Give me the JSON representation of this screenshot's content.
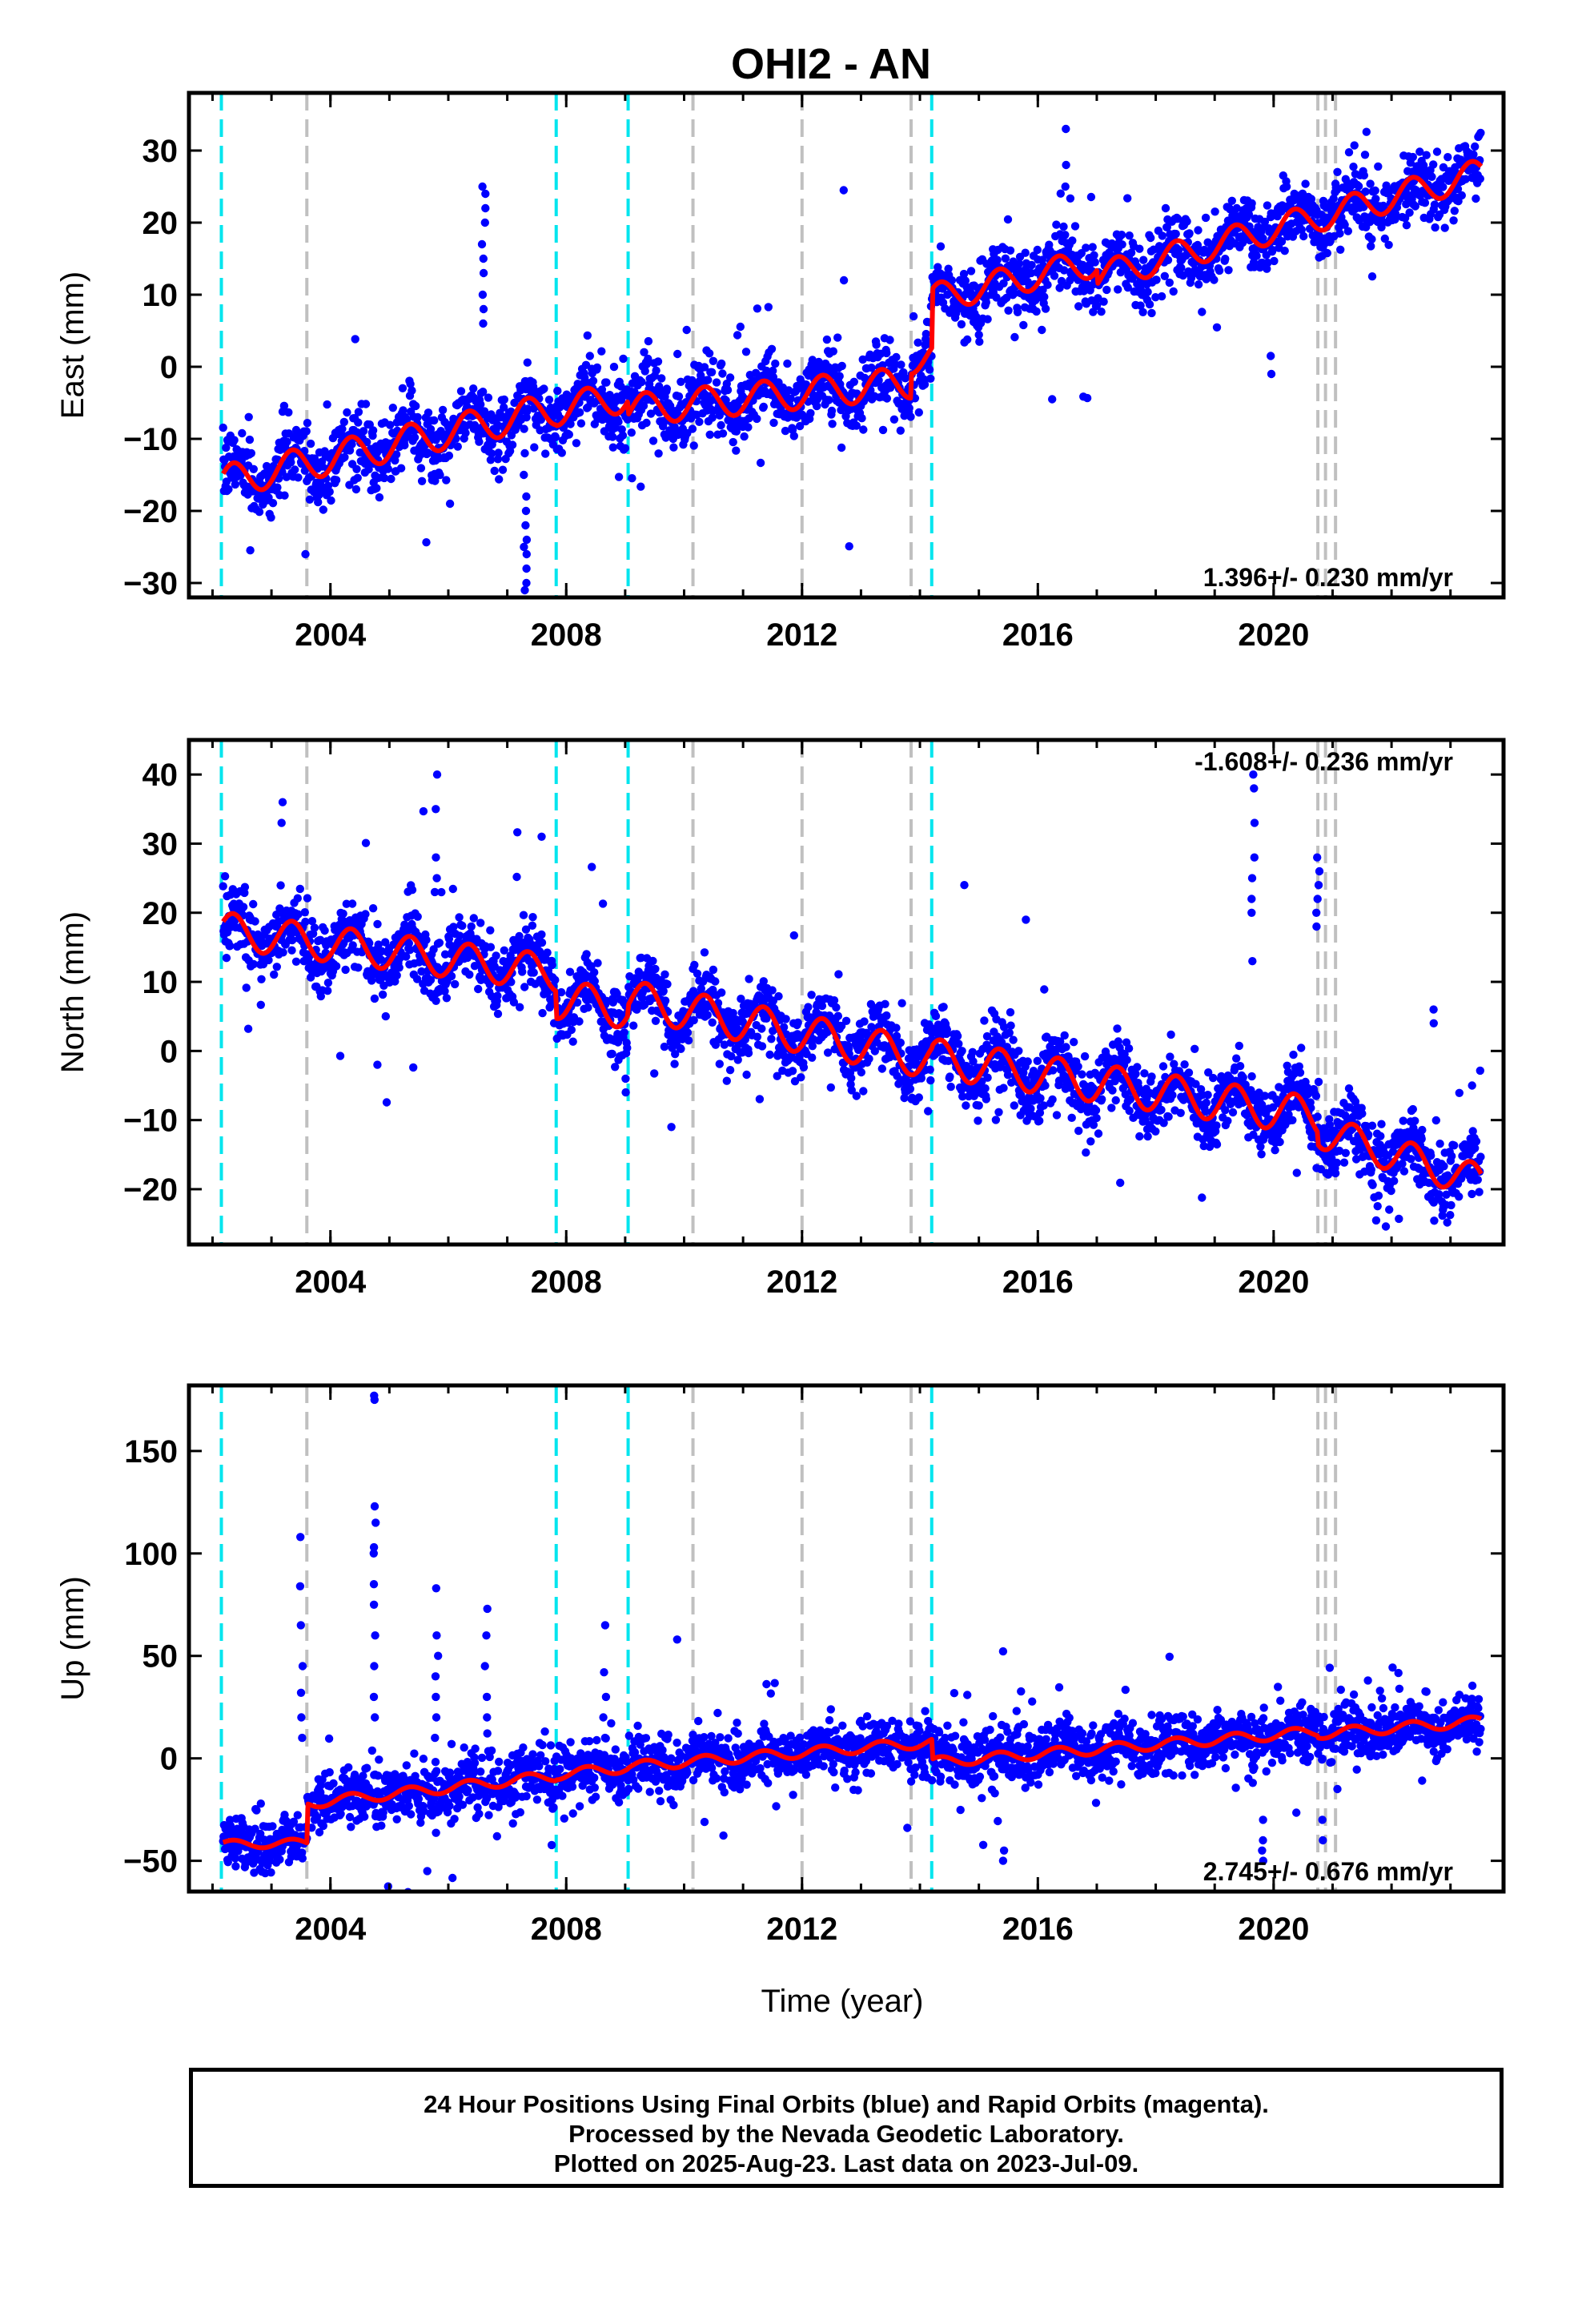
{
  "chart_data": {
    "type": "scatter",
    "title": "OHI2 - AN",
    "xlabel": "Time (year)",
    "x_ticks": [
      2004,
      2008,
      2012,
      2016,
      2020
    ],
    "xlim": [
      2001.6,
      2023.9
    ],
    "colors": {
      "points": "#0000ff",
      "model": "#ff0000",
      "equipment_change": "#00e5ee",
      "earthquake": "#c0c0c0",
      "frame": "#000000"
    },
    "vlines_cyan": [
      2002.15,
      2007.83,
      2009.05,
      2014.2
    ],
    "vlines_gray": [
      2003.6,
      2010.15,
      2012.0,
      2013.85,
      2020.75,
      2020.88,
      2021.05
    ],
    "panels": [
      {
        "ylabel": "East (mm)",
        "ylim": [
          -32,
          38
        ],
        "y_ticks": [
          -30,
          -20,
          -10,
          0,
          10,
          20,
          30
        ],
        "rate_text": "1.396+/- 0.230 mm/yr",
        "rate_position": "bottom-right",
        "model_segments": [
          {
            "t0": 2002.15,
            "t1": 2007.83,
            "intercept": -16.0,
            "slope": 1.8,
            "amp": 2.3
          },
          {
            "t0": 2007.83,
            "t1": 2009.05,
            "intercept": -6.0,
            "slope": 1.6,
            "amp": 2.2
          },
          {
            "t0": 2009.05,
            "t1": 2013.85,
            "intercept": -6.0,
            "slope": 0.8,
            "amp": 2.2
          },
          {
            "t0": 2013.85,
            "t1": 2014.2,
            "intercept": 1.0,
            "slope": 1.2,
            "amp": 2.0
          },
          {
            "t0": 2014.2,
            "t1": 2017.0,
            "intercept": 9.5,
            "slope": 1.8,
            "amp": 2.0
          },
          {
            "t0": 2017.0,
            "t1": 2023.55,
            "intercept": 12.5,
            "slope": 2.2,
            "amp": 2.0
          }
        ],
        "noise": 2.3,
        "outlier_rate": 0.03,
        "outliers": [
          {
            "t": 2006.6,
            "values": [
              25,
              24,
              22,
              20,
              17,
              15,
              13,
              10,
              8,
              6
            ]
          },
          {
            "t": 2007.3,
            "values": [
              -12,
              -15,
              -18,
              -20,
              -22,
              -24,
              -25,
              -26,
              -28,
              -30,
              -31
            ]
          },
          {
            "t": 2006.05,
            "values": [
              -19
            ]
          },
          {
            "t": 2012.7,
            "values": [
              24.5,
              12
            ]
          },
          {
            "t": 2016.45,
            "values": [
              33,
              28,
              25
            ]
          },
          {
            "t": 2016.25,
            "values": [
              -4.5
            ]
          },
          {
            "t": 2019.95,
            "values": [
              -1,
              1.5
            ]
          },
          {
            "t": 2003.6,
            "values": [
              -26
            ]
          }
        ]
      },
      {
        "ylabel": "North (mm)",
        "ylim": [
          -28,
          45
        ],
        "y_ticks": [
          -20,
          -10,
          0,
          10,
          20,
          30,
          40
        ],
        "rate_text": "-1.608+/- 0.236 mm/yr",
        "rate_position": "top-right",
        "model_segments": [
          {
            "t0": 2002.15,
            "t1": 2007.83,
            "intercept": 17.5,
            "slope": -1.1,
            "amp": 2.6
          },
          {
            "t0": 2007.83,
            "t1": 2009.05,
            "intercept": 7.5,
            "slope": -1.2,
            "amp": 2.8
          },
          {
            "t0": 2009.05,
            "t1": 2014.2,
            "intercept": 7.5,
            "slope": -1.7,
            "amp": 2.8
          },
          {
            "t0": 2014.2,
            "t1": 2020.75,
            "intercept": -1.0,
            "slope": -1.3,
            "amp": 2.8
          },
          {
            "t0": 2020.75,
            "t1": 2023.55,
            "intercept": -11.5,
            "slope": -2.7,
            "amp": 2.5
          }
        ],
        "noise": 2.4,
        "outlier_rate": 0.035,
        "outliers": [
          {
            "t": 2005.8,
            "values": [
              40,
              35,
              28,
              25,
              23
            ]
          },
          {
            "t": 2003.2,
            "values": [
              36,
              33
            ]
          },
          {
            "t": 2019.65,
            "values": [
              40,
              38,
              33,
              28,
              25,
              22,
              20,
              13
            ]
          },
          {
            "t": 2020.75,
            "values": [
              28,
              26,
              24,
              22,
              20,
              18
            ]
          },
          {
            "t": 2007.6,
            "values": [
              31
            ]
          },
          {
            "t": 2009.0,
            "values": [
              -4,
              -6
            ]
          },
          {
            "t": 2009.8,
            "values": [
              -11
            ]
          },
          {
            "t": 2015.8,
            "values": [
              19
            ]
          },
          {
            "t": 2014.75,
            "values": [
              24
            ]
          },
          {
            "t": 2004.8,
            "values": [
              -2
            ]
          },
          {
            "t": 2022.7,
            "values": [
              6,
              4
            ]
          },
          {
            "t": 2023.35,
            "values": [
              -5
            ]
          }
        ]
      },
      {
        "ylabel": "Up (mm)",
        "ylim": [
          -65,
          182
        ],
        "y_ticks": [
          -50,
          0,
          50,
          100,
          150
        ],
        "rate_text": "2.745+/- 0.676 mm/yr",
        "rate_position": "bottom-right",
        "model_segments": [
          {
            "t0": 2002.15,
            "t1": 2003.6,
            "intercept": -42.0,
            "slope": 0.5,
            "amp": 2.0
          },
          {
            "t0": 2003.6,
            "t1": 2007.83,
            "intercept": -22.0,
            "slope": 3.2,
            "amp": 2.5
          },
          {
            "t0": 2007.83,
            "t1": 2009.05,
            "intercept": -8.0,
            "slope": 3.0,
            "amp": 2.5
          },
          {
            "t0": 2009.05,
            "t1": 2014.2,
            "intercept": -4.0,
            "slope": 2.3,
            "amp": 2.5
          },
          {
            "t0": 2014.2,
            "t1": 2020.75,
            "intercept": -2.0,
            "slope": 2.3,
            "amp": 2.5
          },
          {
            "t0": 2020.75,
            "t1": 2023.55,
            "intercept": 12.0,
            "slope": 2.2,
            "amp": 2.5
          }
        ],
        "noise": 6.5,
        "outlier_rate": 0.045,
        "outliers": [
          {
            "t": 2004.75,
            "values": [
              177,
              175,
              123,
              115,
              103,
              100,
              85,
              75,
              60,
              45,
              30,
              20
            ]
          },
          {
            "t": 2003.5,
            "values": [
              108,
              84,
              65,
              45,
              32,
              20,
              10
            ]
          },
          {
            "t": 2005.8,
            "values": [
              83,
              60,
              50,
              40,
              30,
              20,
              10
            ]
          },
          {
            "t": 2006.65,
            "values": [
              73,
              60,
              45,
              30,
              20
            ]
          },
          {
            "t": 2008.65,
            "values": [
              65,
              42,
              30,
              20,
              10
            ]
          },
          {
            "t": 2009.9,
            "values": [
              58
            ]
          },
          {
            "t": 2019.8,
            "values": [
              -50,
              -45,
              -40,
              -30
            ]
          },
          {
            "t": 2015.4,
            "values": [
              -50,
              -45
            ]
          },
          {
            "t": 2020.85,
            "values": [
              -40,
              -30
            ]
          }
        ]
      }
    ]
  },
  "caption": {
    "line1": "24 Hour Positions Using Final Orbits (blue) and Rapid Orbits (magenta).",
    "line2": "Processed by the Nevada Geodetic Laboratory.",
    "line3": "Plotted on 2025-Aug-23. Last data on 2023-Jul-09."
  }
}
